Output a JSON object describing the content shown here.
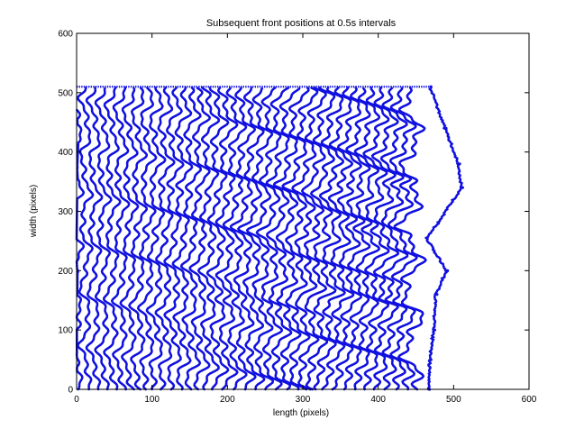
{
  "chart_data": {
    "type": "scatter",
    "title": "Subsequent front positions at 0.5s intervals",
    "xlabel": "length (pixels)",
    "ylabel": "width (pixels)",
    "xlim": [
      0,
      600
    ],
    "ylim": [
      0,
      600
    ],
    "xticks": [
      0,
      100,
      200,
      300,
      400,
      500,
      600
    ],
    "yticks": [
      0,
      100,
      200,
      300,
      400,
      500,
      600
    ],
    "grid": false,
    "legend": "none",
    "marker": "circle",
    "color": "#1010e0",
    "fronts": {
      "count": 40,
      "spacing_x": 11.7,
      "y_range": [
        0,
        510
      ],
      "max_x": 512
    },
    "series": [
      {
        "values": [
          {
            "x": 470,
            "y": 510
          },
          {
            "x": 490,
            "y": 440
          },
          {
            "x": 508,
            "y": 380
          },
          {
            "x": 512,
            "y": 340
          },
          {
            "x": 480,
            "y": 280
          },
          {
            "x": 465,
            "y": 255
          },
          {
            "x": 492,
            "y": 200
          },
          {
            "x": 478,
            "y": 160
          },
          {
            "x": 475,
            "y": 100
          },
          {
            "x": 470,
            "y": 50
          },
          {
            "x": 468,
            "y": 0
          }
        ]
      }
    ]
  }
}
